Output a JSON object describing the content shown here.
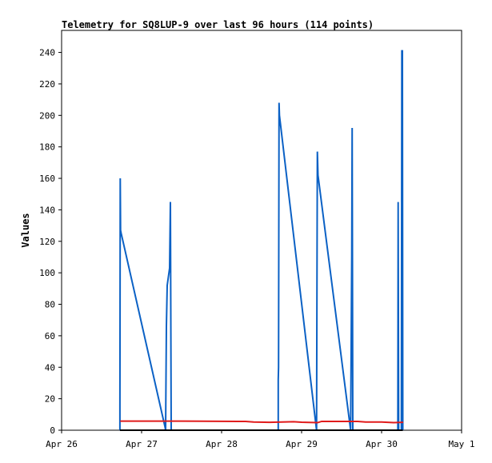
{
  "chart_data": {
    "type": "line",
    "title": "Telemetry for SQ8LUP-9 over last 96 hours (114 points)",
    "xlabel": "",
    "ylabel": "Values",
    "x_ticks": [
      "Apr 26",
      "Apr 27",
      "Apr 28",
      "Apr 29",
      "Apr 30",
      "May 1"
    ],
    "x_range_days": [
      0,
      5
    ],
    "y_ticks": [
      0,
      20,
      40,
      60,
      80,
      100,
      120,
      140,
      160,
      180,
      200,
      220,
      240
    ],
    "ylim": [
      0,
      254
    ],
    "grid": false,
    "legend": "none",
    "colors": {
      "blue": "#0b61c5",
      "red": "#e01b1b",
      "black": "#000000"
    },
    "series": [
      {
        "color": "#0b61c5",
        "points": [
          [
            0.729,
            0
          ],
          [
            0.729,
            16
          ],
          [
            0.733,
            160
          ],
          [
            0.737,
            127
          ],
          [
            0.745,
            125
          ],
          [
            1.293,
            2
          ],
          [
            1.3,
            0
          ],
          [
            1.31,
            66
          ],
          [
            1.32,
            92
          ],
          [
            1.35,
            103
          ],
          [
            1.36,
            145
          ],
          [
            1.37,
            0
          ],
          [
            2.708,
            0
          ],
          [
            2.708,
            32
          ],
          [
            2.712,
            40
          ],
          [
            2.718,
            208
          ],
          [
            2.723,
            200
          ],
          [
            3.187,
            0
          ],
          [
            3.197,
            177
          ],
          [
            3.205,
            162
          ],
          [
            3.613,
            0
          ],
          [
            3.627,
            111
          ],
          [
            3.632,
            192
          ],
          [
            3.64,
            0
          ],
          [
            4.203,
            0
          ],
          [
            4.207,
            145
          ],
          [
            4.213,
            0
          ],
          [
            4.247,
            0
          ],
          [
            4.253,
            241
          ],
          [
            4.26,
            241
          ],
          [
            4.265,
            0
          ]
        ]
      },
      {
        "color": "#e01b1b",
        "points": [
          [
            0.733,
            5.8
          ],
          [
            1.5,
            5.8
          ],
          [
            2.2,
            5.6
          ],
          [
            2.3,
            5.6
          ],
          [
            2.4,
            5.2
          ],
          [
            2.6,
            5.0
          ],
          [
            2.9,
            5.4
          ],
          [
            3.0,
            5.1
          ],
          [
            3.2,
            4.8
          ],
          [
            3.25,
            5.6
          ],
          [
            3.5,
            5.6
          ],
          [
            3.7,
            5.6
          ],
          [
            3.8,
            5.2
          ],
          [
            4.0,
            5.2
          ],
          [
            4.15,
            4.8
          ],
          [
            4.27,
            5.0
          ]
        ]
      },
      {
        "color": "#000000",
        "points": [
          [
            0.729,
            0
          ],
          [
            4.265,
            0
          ]
        ]
      }
    ]
  }
}
